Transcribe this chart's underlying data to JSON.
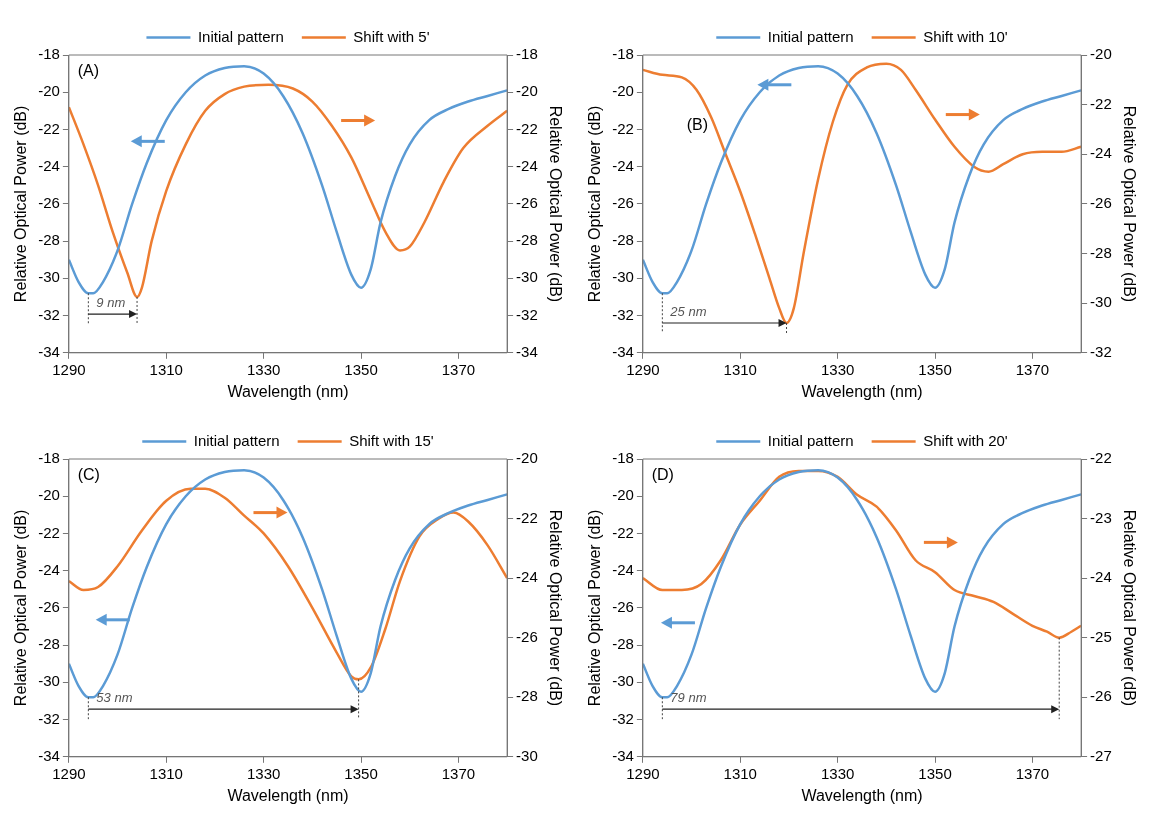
{
  "chart_data": [
    {
      "type": "line",
      "xlabel": "Wavelength (nm)",
      "ylabel": "Relative Optical Power (dB)",
      "y2label": "Relative Optical Power (dB)",
      "xlim": [
        1290,
        1380
      ],
      "xticks": [
        1290,
        1310,
        1330,
        1350,
        1370
      ],
      "ylim": [
        -34,
        -18
      ],
      "yticks": [
        -34,
        -32,
        -30,
        -28,
        -26,
        -24,
        -22,
        -20,
        -18
      ],
      "y2lim": [
        -34,
        -18
      ],
      "y2ticks": [
        -34,
        -32,
        -30,
        -28,
        -26,
        -24,
        -22,
        -20,
        -18
      ],
      "legend": "top",
      "marker": "none",
      "annotations": [
        "(A)",
        "9 nm"
      ],
      "series": [
        {
          "name": "Initial pattern",
          "color": "#5b9bd5",
          "x": [
            1290,
            1292,
            1294,
            1295,
            1297,
            1300,
            1303,
            1306,
            1310,
            1314,
            1318,
            1322,
            1326,
            1330,
            1334,
            1338,
            1342,
            1345,
            1348,
            1350,
            1352,
            1354,
            1357,
            1360,
            1364,
            1368,
            1372,
            1376,
            1380
          ],
          "values": [
            -29,
            -30.2,
            -30.8,
            -30.8,
            -30.2,
            -28.5,
            -26,
            -23.8,
            -21.5,
            -20,
            -19.1,
            -18.7,
            -18.6,
            -19,
            -20.2,
            -22.2,
            -25,
            -27.5,
            -29.8,
            -30.5,
            -29.5,
            -27,
            -24.5,
            -22.8,
            -21.5,
            -20.9,
            -20.5,
            -20.2,
            -19.9
          ]
        },
        {
          "name": "Shift with 5'",
          "color": "#ed7d31",
          "axis": "y2",
          "x": [
            1290,
            1293,
            1296,
            1299,
            1302,
            1304,
            1305,
            1307,
            1310,
            1314,
            1318,
            1322,
            1326,
            1331,
            1336,
            1340,
            1344,
            1348,
            1352,
            1355,
            1358,
            1360,
            1363,
            1367,
            1371,
            1376,
            1380
          ],
          "values": [
            -20.8,
            -22.8,
            -25,
            -27.5,
            -29.7,
            -31,
            -30.5,
            -28,
            -25.3,
            -22.8,
            -21,
            -20.1,
            -19.7,
            -19.6,
            -19.8,
            -20.5,
            -21.8,
            -23.5,
            -25.8,
            -27.5,
            -28.5,
            -28.3,
            -27,
            -24.8,
            -23,
            -21.8,
            -21
          ]
        }
      ]
    },
    {
      "type": "line",
      "xlabel": "Wavelength (nm)",
      "ylabel": "Relative Optical Power (dB)",
      "y2label": "Relative Optical Power (dB)",
      "xlim": [
        1290,
        1380
      ],
      "xticks": [
        1290,
        1310,
        1330,
        1350,
        1370
      ],
      "ylim": [
        -34,
        -18
      ],
      "yticks": [
        -34,
        -32,
        -30,
        -28,
        -26,
        -24,
        -22,
        -20,
        -18
      ],
      "y2lim": [
        -32,
        -20
      ],
      "y2ticks": [
        -32,
        -30,
        -28,
        -26,
        -24,
        -22,
        -20
      ],
      "legend": "top",
      "marker": "none",
      "annotations": [
        "(B)",
        "25 nm"
      ],
      "series": [
        {
          "name": "Initial pattern",
          "color": "#5b9bd5",
          "x": [
            1290,
            1292,
            1294,
            1295,
            1297,
            1300,
            1303,
            1306,
            1310,
            1314,
            1318,
            1322,
            1326,
            1330,
            1334,
            1338,
            1342,
            1345,
            1348,
            1350,
            1352,
            1354,
            1357,
            1360,
            1364,
            1368,
            1372,
            1376,
            1380
          ],
          "values": [
            -29,
            -30.2,
            -30.8,
            -30.8,
            -30.2,
            -28.5,
            -26,
            -23.8,
            -21.5,
            -20,
            -19.1,
            -18.7,
            -18.6,
            -19,
            -20.2,
            -22.2,
            -25,
            -27.5,
            -29.8,
            -30.5,
            -29.5,
            -27,
            -24.5,
            -22.8,
            -21.5,
            -20.9,
            -20.5,
            -20.2,
            -19.9
          ]
        },
        {
          "name": "Shift with 10'",
          "color": "#ed7d31",
          "axis": "y2",
          "x": [
            1290,
            1294,
            1298,
            1301,
            1304,
            1307,
            1310,
            1313,
            1316,
            1318,
            1319.5,
            1321,
            1323,
            1326,
            1329,
            1332,
            1336,
            1340,
            1343,
            1346,
            1350,
            1354,
            1358,
            1361,
            1364,
            1368,
            1372,
            1376,
            1380
          ],
          "values": [
            -20.6,
            -20.8,
            -20.9,
            -21.4,
            -22.5,
            -24,
            -25.5,
            -27.2,
            -29,
            -30.2,
            -30.8,
            -30.2,
            -28,
            -25,
            -22.7,
            -21.2,
            -20.5,
            -20.35,
            -20.6,
            -21.4,
            -22.6,
            -23.7,
            -24.5,
            -24.7,
            -24.4,
            -24,
            -23.9,
            -23.9,
            -23.7
          ]
        }
      ]
    },
    {
      "type": "line",
      "xlabel": "Wavelength (nm)",
      "ylabel": "Relative Optical Power (dB)",
      "y2label": "Relative Optical Power (dB)",
      "xlim": [
        1290,
        1380
      ],
      "xticks": [
        1290,
        1310,
        1330,
        1350,
        1370
      ],
      "ylim": [
        -34,
        -18
      ],
      "yticks": [
        -34,
        -32,
        -30,
        -28,
        -26,
        -24,
        -22,
        -20,
        -18
      ],
      "y2lim": [
        -30,
        -20
      ],
      "y2ticks": [
        -30,
        -28,
        -26,
        -24,
        -22,
        -20
      ],
      "legend": "top",
      "marker": "none",
      "annotations": [
        "(C)",
        "53 nm"
      ],
      "series": [
        {
          "name": "Initial pattern",
          "color": "#5b9bd5",
          "x": [
            1290,
            1292,
            1294,
            1295,
            1297,
            1300,
            1303,
            1306,
            1310,
            1314,
            1318,
            1322,
            1326,
            1330,
            1334,
            1338,
            1342,
            1345,
            1348,
            1350,
            1352,
            1354,
            1357,
            1360,
            1364,
            1368,
            1372,
            1376,
            1380
          ],
          "values": [
            -29,
            -30.2,
            -30.8,
            -30.8,
            -30.2,
            -28.5,
            -26,
            -23.8,
            -21.5,
            -20,
            -19.1,
            -18.7,
            -18.6,
            -19,
            -20.2,
            -22.2,
            -25,
            -27.5,
            -29.8,
            -30.5,
            -29.5,
            -27,
            -24.5,
            -22.8,
            -21.5,
            -20.9,
            -20.5,
            -20.2,
            -19.9
          ]
        },
        {
          "name": "Shift with 15'",
          "color": "#ed7d31",
          "axis": "y2",
          "x": [
            1290,
            1293,
            1296,
            1300,
            1305,
            1310,
            1315,
            1318,
            1322,
            1326,
            1330,
            1335,
            1340,
            1345,
            1348,
            1349.5,
            1352,
            1355,
            1358,
            1362,
            1366,
            1369,
            1372,
            1376,
            1380
          ],
          "values": [
            -24.1,
            -24.4,
            -24.3,
            -23.6,
            -22.4,
            -21.4,
            -21,
            -21,
            -21.3,
            -21.9,
            -22.5,
            -23.6,
            -25,
            -26.5,
            -27.3,
            -27.4,
            -27,
            -25.7,
            -24.1,
            -22.6,
            -22,
            -21.8,
            -22.1,
            -22.9,
            -24
          ]
        }
      ]
    },
    {
      "type": "line",
      "xlabel": "Wavelength (nm)",
      "ylabel": "Relative Optical Power (dB)",
      "y2label": "Relative Optical Power (dB)",
      "xlim": [
        1290,
        1380
      ],
      "xticks": [
        1290,
        1310,
        1330,
        1350,
        1370
      ],
      "ylim": [
        -34,
        -18
      ],
      "yticks": [
        -34,
        -32,
        -30,
        -28,
        -26,
        -24,
        -22,
        -20,
        -18
      ],
      "y2lim": [
        -27,
        -22
      ],
      "y2ticks": [
        -27,
        -26,
        -25,
        -24,
        -23,
        -22
      ],
      "legend": "top",
      "marker": "none",
      "annotations": [
        "(D)",
        "79 nm"
      ],
      "series": [
        {
          "name": "Initial pattern",
          "color": "#5b9bd5",
          "x": [
            1290,
            1292,
            1294,
            1295,
            1297,
            1300,
            1303,
            1306,
            1310,
            1314,
            1318,
            1322,
            1326,
            1330,
            1334,
            1338,
            1342,
            1345,
            1348,
            1350,
            1352,
            1354,
            1357,
            1360,
            1364,
            1368,
            1372,
            1376,
            1380
          ],
          "values": [
            -29,
            -30.2,
            -30.8,
            -30.8,
            -30.2,
            -28.5,
            -26,
            -23.8,
            -21.5,
            -20,
            -19.1,
            -18.7,
            -18.6,
            -19,
            -20.2,
            -22.2,
            -25,
            -27.5,
            -29.8,
            -30.5,
            -29.5,
            -27,
            -24.5,
            -22.8,
            -21.5,
            -20.9,
            -20.5,
            -20.2,
            -19.9
          ]
        },
        {
          "name": "Shift with 20'",
          "color": "#ed7d31",
          "axis": "y2",
          "x": [
            1290,
            1294,
            1298,
            1302,
            1306,
            1310,
            1314,
            1318,
            1322,
            1326,
            1330,
            1334,
            1338,
            1342,
            1346,
            1350,
            1354,
            1358,
            1362,
            1366,
            1370,
            1373,
            1375.5,
            1378,
            1380
          ],
          "values": [
            -24,
            -24.2,
            -24.2,
            -24.1,
            -23.7,
            -23.1,
            -22.7,
            -22.3,
            -22.2,
            -22.2,
            -22.3,
            -22.6,
            -22.8,
            -23.2,
            -23.7,
            -23.9,
            -24.2,
            -24.3,
            -24.4,
            -24.6,
            -24.8,
            -24.9,
            -25,
            -24.9,
            -24.8
          ]
        }
      ]
    }
  ]
}
